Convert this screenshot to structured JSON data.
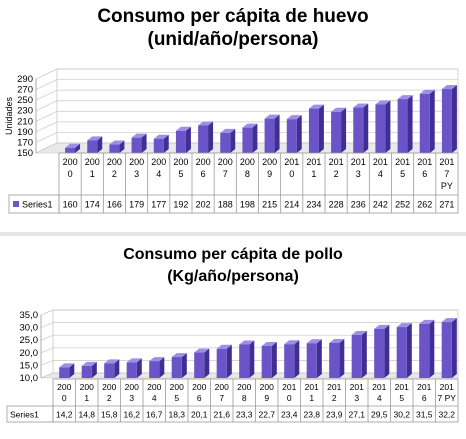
{
  "chart_data": [
    {
      "type": "bar",
      "title": "Consumo per cápita de huevo",
      "subtitle": "(unid/año/persona)",
      "xlabel": "",
      "ylabel": "Unidades",
      "ylim": [
        150,
        290
      ],
      "yticks": [
        "290",
        "270",
        "250",
        "230",
        "210",
        "190",
        "170",
        "150"
      ],
      "categories": [
        [
          "200",
          "0"
        ],
        [
          "200",
          "1"
        ],
        [
          "200",
          "2"
        ],
        [
          "200",
          "3"
        ],
        [
          "200",
          "4"
        ],
        [
          "200",
          "5"
        ],
        [
          "200",
          "6"
        ],
        [
          "200",
          "7"
        ],
        [
          "200",
          "8"
        ],
        [
          "200",
          "9"
        ],
        [
          "201",
          "0"
        ],
        [
          "201",
          "1"
        ],
        [
          "201",
          "2"
        ],
        [
          "201",
          "3"
        ],
        [
          "201",
          "4"
        ],
        [
          "201",
          "5"
        ],
        [
          "201",
          "6"
        ],
        [
          "201",
          "7",
          "PY"
        ]
      ],
      "series": [
        {
          "name": "Series1",
          "values": [
            160,
            174,
            166,
            179,
            177,
            192,
            202,
            188,
            198,
            215,
            214,
            234,
            228,
            236,
            242,
            252,
            262,
            271
          ],
          "labels": [
            "160",
            "174",
            "166",
            "179",
            "177",
            "192",
            "202",
            "188",
            "198",
            "215",
            "214",
            "234",
            "228",
            "236",
            "242",
            "252",
            "262",
            "271"
          ]
        }
      ],
      "color": "#6b53c8",
      "grid": true,
      "legend": "in-table"
    },
    {
      "type": "bar",
      "title": "Consumo per cápita de pollo",
      "subtitle": "(Kg/año/persona)",
      "xlabel": "",
      "ylabel": "",
      "ylim": [
        10,
        35
      ],
      "yticks": [
        "35,0",
        "30,0",
        "25,0",
        "20,0",
        "15,0",
        "10,0"
      ],
      "categories": [
        [
          "200",
          "0"
        ],
        [
          "200",
          "1"
        ],
        [
          "200",
          "2"
        ],
        [
          "200",
          "3"
        ],
        [
          "200",
          "4"
        ],
        [
          "200",
          "5"
        ],
        [
          "200",
          "6"
        ],
        [
          "200",
          "7"
        ],
        [
          "200",
          "8"
        ],
        [
          "200",
          "9"
        ],
        [
          "201",
          "0"
        ],
        [
          "201",
          "1"
        ],
        [
          "201",
          "2"
        ],
        [
          "201",
          "3"
        ],
        [
          "201",
          "4"
        ],
        [
          "201",
          "5"
        ],
        [
          "201",
          "6"
        ],
        [
          "201",
          "7 PY"
        ]
      ],
      "series": [
        {
          "name": "Series1",
          "values": [
            14.2,
            14.8,
            15.8,
            16.2,
            16.7,
            18.3,
            20.1,
            21.6,
            23.3,
            22.7,
            23.4,
            23.8,
            23.9,
            27.1,
            29.5,
            30.2,
            31.5,
            32.2
          ],
          "labels": [
            "14,2",
            "14,8",
            "15,8",
            "16,2",
            "16,7",
            "18,3",
            "20,1",
            "21,6",
            "23,3",
            "22,7",
            "23,4",
            "23,8",
            "23,9",
            "27,1",
            "29,5",
            "30,2",
            "31,5",
            "32,2"
          ]
        }
      ],
      "color": "#6b53c8",
      "grid": true,
      "legend": "in-table"
    }
  ]
}
